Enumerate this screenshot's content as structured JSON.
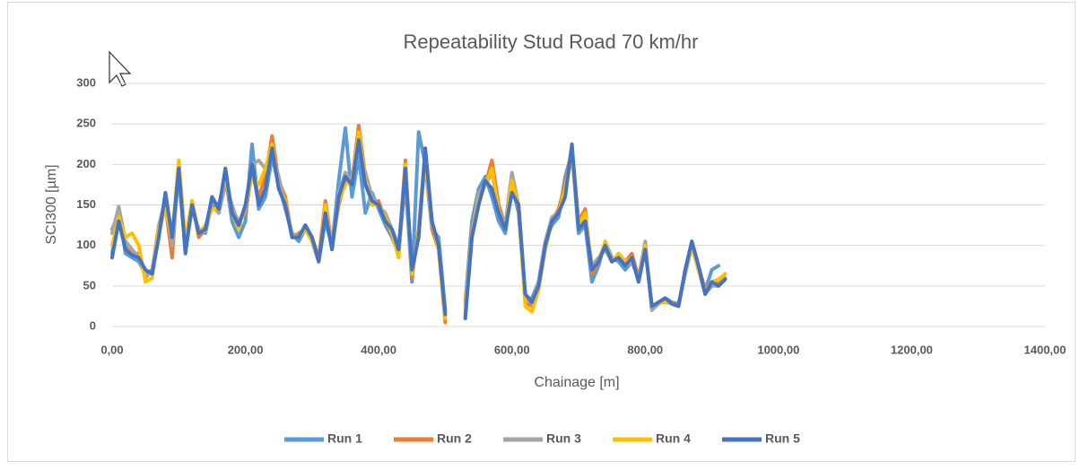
{
  "chart_data": {
    "type": "line",
    "title": "Repeatability Stud Road 70 km/hr",
    "x_label": "Chainage [m]",
    "y_label": "SCI300 [µm]",
    "xlim": [
      0,
      1400
    ],
    "ylim": [
      0,
      300
    ],
    "xticks": [
      {
        "value": 0,
        "label": "0,00"
      },
      {
        "value": 200,
        "label": "200,00"
      },
      {
        "value": 400,
        "label": "400,00"
      },
      {
        "value": 600,
        "label": "600,00"
      },
      {
        "value": 800,
        "label": "800,00"
      },
      {
        "value": 1000,
        "label": "1000,00"
      },
      {
        "value": 1200,
        "label": "1200,00"
      },
      {
        "value": 1400,
        "label": "1400,00"
      }
    ],
    "yticks": [
      0,
      50,
      100,
      150,
      200,
      250,
      300
    ],
    "grid": true,
    "legend": "bottom",
    "x": [
      0,
      10,
      20,
      30,
      40,
      50,
      60,
      70,
      80,
      90,
      100,
      110,
      120,
      130,
      140,
      150,
      160,
      170,
      180,
      190,
      200,
      210,
      220,
      230,
      240,
      250,
      260,
      270,
      280,
      290,
      300,
      310,
      320,
      330,
      340,
      350,
      360,
      370,
      380,
      390,
      400,
      410,
      420,
      430,
      440,
      450,
      460,
      470,
      480,
      490,
      500,
      510,
      520,
      530,
      540,
      550,
      560,
      570,
      580,
      590,
      600,
      610,
      620,
      630,
      640,
      650,
      660,
      670,
      680,
      690,
      700,
      710,
      720,
      730,
      740,
      750,
      760,
      770,
      780,
      790,
      800,
      810,
      820,
      830,
      840,
      850,
      860,
      870,
      880,
      890,
      900,
      910,
      920
    ],
    "series": [
      {
        "name": "Run 1",
        "color": "#5b9bd5",
        "values": [
          90,
          145,
          90,
          85,
          80,
          65,
          70,
          120,
          160,
          105,
          190,
          95,
          145,
          120,
          115,
          155,
          150,
          185,
          130,
          110,
          130,
          225,
          145,
          160,
          210,
          175,
          145,
          115,
          105,
          120,
          105,
          80,
          130,
          100,
          180,
          245,
          160,
          210,
          140,
          165,
          145,
          125,
          110,
          90,
          180,
          55,
          240,
          200,
          120,
          110,
          20,
          null,
          null,
          30,
          130,
          170,
          185,
          160,
          130,
          115,
          175,
          140,
          35,
          35,
          55,
          105,
          125,
          135,
          185,
          215,
          115,
          125,
          55,
          75,
          105,
          85,
          80,
          70,
          80,
          60,
          100,
          25,
          28,
          35,
          30,
          28,
          65,
          100,
          70,
          45,
          70,
          75,
          null
        ]
      },
      {
        "name": "Run 2",
        "color": "#ed7d31",
        "values": [
          120,
          140,
          100,
          90,
          90,
          60,
          70,
          115,
          150,
          85,
          200,
          100,
          155,
          110,
          120,
          150,
          140,
          180,
          145,
          130,
          140,
          190,
          160,
          185,
          235,
          180,
          160,
          110,
          115,
          120,
          110,
          85,
          155,
          100,
          150,
          180,
          180,
          248,
          185,
          150,
          155,
          130,
          115,
          90,
          205,
          60,
          120,
          215,
          120,
          95,
          5,
          null,
          null,
          15,
          120,
          160,
          175,
          205,
          150,
          125,
          180,
          145,
          30,
          25,
          50,
          100,
          130,
          145,
          175,
          220,
          130,
          145,
          65,
          80,
          100,
          80,
          90,
          80,
          90,
          60,
          100,
          25,
          30,
          30,
          30,
          25,
          70,
          105,
          75,
          45,
          55,
          55,
          60
        ]
      },
      {
        "name": "Run 3",
        "color": "#a5a5a5",
        "values": [
          115,
          148,
          105,
          95,
          85,
          62,
          68,
          125,
          155,
          100,
          185,
          95,
          150,
          118,
          118,
          158,
          140,
          175,
          150,
          125,
          145,
          200,
          205,
          195,
          215,
          185,
          150,
          115,
          110,
          125,
          110,
          80,
          145,
          100,
          165,
          190,
          178,
          225,
          190,
          160,
          148,
          140,
          120,
          100,
          185,
          65,
          115,
          210,
          125,
          105,
          15,
          null,
          null,
          25,
          115,
          165,
          175,
          190,
          145,
          125,
          190,
          150,
          35,
          30,
          55,
          105,
          135,
          140,
          170,
          210,
          125,
          135,
          75,
          85,
          95,
          80,
          85,
          75,
          80,
          60,
          105,
          20,
          28,
          32,
          28,
          25,
          65,
          100,
          70,
          40,
          50,
          50,
          60
        ]
      },
      {
        "name": "Run 4",
        "color": "#ffc000",
        "values": [
          100,
          135,
          110,
          115,
          100,
          55,
          60,
          120,
          145,
          110,
          205,
          105,
          155,
          115,
          125,
          145,
          145,
          190,
          140,
          120,
          150,
          185,
          175,
          195,
          225,
          170,
          155,
          110,
          110,
          120,
          105,
          80,
          150,
          95,
          155,
          175,
          180,
          240,
          180,
          150,
          150,
          135,
          115,
          85,
          200,
          65,
          115,
          205,
          130,
          95,
          10,
          null,
          null,
          20,
          110,
          155,
          175,
          195,
          140,
          120,
          180,
          150,
          25,
          18,
          45,
          95,
          130,
          140,
          170,
          215,
          125,
          140,
          70,
          80,
          105,
          80,
          90,
          80,
          85,
          55,
          100,
          25,
          30,
          30,
          28,
          25,
          70,
          100,
          70,
          42,
          55,
          58,
          65
        ]
      },
      {
        "name": "Run 5",
        "color": "#4472c4",
        "values": [
          85,
          130,
          95,
          88,
          85,
          70,
          65,
          110,
          165,
          110,
          195,
          90,
          150,
          115,
          120,
          160,
          145,
          195,
          140,
          125,
          150,
          200,
          150,
          170,
          220,
          170,
          150,
          110,
          110,
          125,
          110,
          80,
          140,
          95,
          160,
          185,
          175,
          230,
          175,
          155,
          150,
          130,
          120,
          95,
          195,
          70,
          110,
          220,
          130,
          100,
          15,
          null,
          null,
          10,
          110,
          150,
          180,
          170,
          140,
          120,
          165,
          150,
          40,
          30,
          50,
          100,
          130,
          140,
          160,
          225,
          120,
          130,
          70,
          80,
          100,
          80,
          85,
          75,
          85,
          55,
          95,
          25,
          30,
          35,
          28,
          25,
          70,
          105,
          75,
          40,
          55,
          50,
          58
        ]
      }
    ]
  }
}
